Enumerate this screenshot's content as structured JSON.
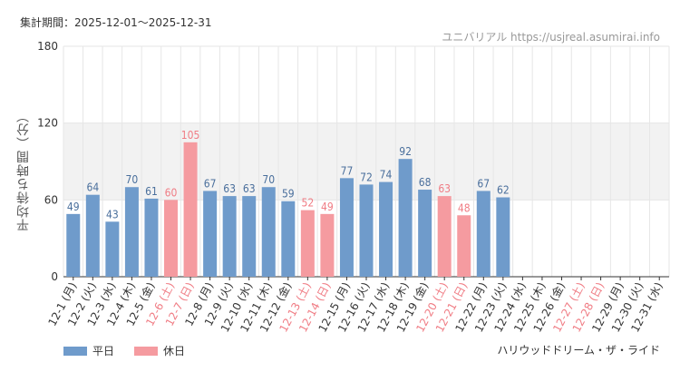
{
  "header": {
    "period": "集計期間：2025-12-01～2025-12-31",
    "site": "ユニバリアル https://usjreal.asumirai.info"
  },
  "footer": {
    "attraction": "ハリウッドドリーム・ザ・ライド"
  },
  "colors": {
    "weekday": "#6f9bcb",
    "holiday": "#f59ba0",
    "holiday_text": "#f07c84",
    "grid": "#e6e6e6",
    "band": "#f2f2f2",
    "axis": "#333333"
  },
  "chart_data": {
    "type": "bar",
    "title": "",
    "xlabel": "",
    "ylabel": "平均待ち時間（分）",
    "ylim": [
      0,
      180
    ],
    "yticks": [
      0,
      60,
      120,
      180
    ],
    "categories": [
      "12-1 (月)",
      "12-2 (火)",
      "12-3 (水)",
      "12-4 (木)",
      "12-5 (金)",
      "12-6 (土)",
      "12-7 (日)",
      "12-8 (月)",
      "12-9 (火)",
      "12-10 (水)",
      "12-11 (木)",
      "12-12 (金)",
      "12-13 (土)",
      "12-14 (日)",
      "12-15 (月)",
      "12-16 (火)",
      "12-17 (水)",
      "12-18 (木)",
      "12-19 (金)",
      "12-20 (土)",
      "12-21 (日)",
      "12-22 (月)",
      "12-23 (火)",
      "12-24 (水)",
      "12-25 (木)",
      "12-26 (金)",
      "12-27 (土)",
      "12-28 (日)",
      "12-29 (月)",
      "12-30 (火)",
      "12-31 (水)"
    ],
    "values": [
      49,
      64,
      43,
      70,
      61,
      60,
      105,
      67,
      63,
      63,
      70,
      59,
      52,
      49,
      77,
      72,
      74,
      92,
      68,
      63,
      48,
      67,
      62,
      null,
      null,
      null,
      null,
      null,
      null,
      null,
      null
    ],
    "day_type": [
      "weekday",
      "weekday",
      "weekday",
      "weekday",
      "weekday",
      "holiday",
      "holiday",
      "weekday",
      "weekday",
      "weekday",
      "weekday",
      "weekday",
      "holiday",
      "holiday",
      "weekday",
      "weekday",
      "weekday",
      "weekday",
      "weekday",
      "holiday",
      "holiday",
      "weekday",
      "weekday",
      "weekday",
      "weekday",
      "weekday",
      "holiday",
      "holiday",
      "weekday",
      "weekday",
      "weekday"
    ],
    "legend": [
      {
        "name": "平日",
        "key": "weekday"
      },
      {
        "name": "休日",
        "key": "holiday"
      }
    ]
  }
}
